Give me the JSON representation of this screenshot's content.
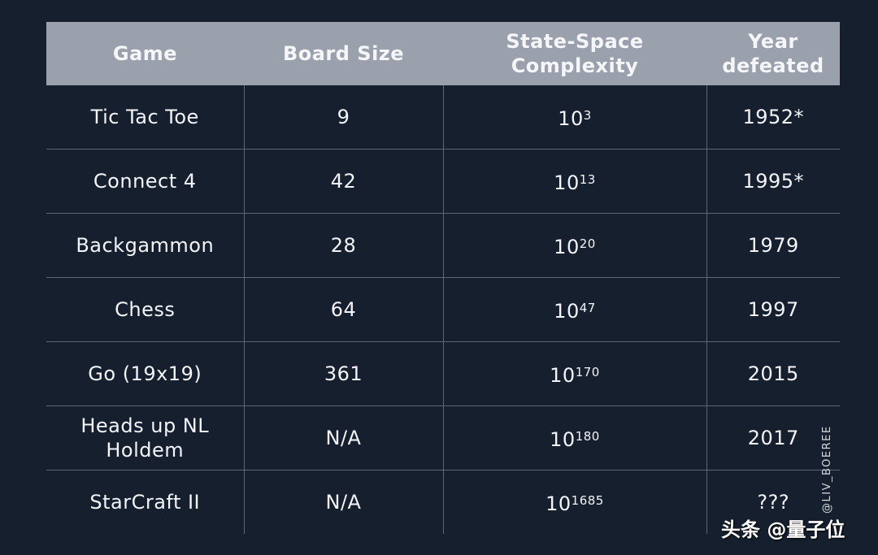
{
  "table": {
    "headers": [
      "Game",
      "Board Size",
      "State-Space Complexity",
      "Year defeated"
    ],
    "rows": [
      {
        "game": "Tic Tac Toe",
        "board": "9",
        "base": "10",
        "exp": "3",
        "year": "1952*"
      },
      {
        "game": "Connect 4",
        "board": "42",
        "base": "10",
        "exp": "13",
        "year": "1995*"
      },
      {
        "game": "Backgammon",
        "board": "28",
        "base": "10",
        "exp": "20",
        "year": "1979"
      },
      {
        "game": "Chess",
        "board": "64",
        "base": "10",
        "exp": "47",
        "year": "1997"
      },
      {
        "game": "Go (19x19)",
        "board": "361",
        "base": "10",
        "exp": "170",
        "year": "2015"
      },
      {
        "game": "Heads up NL Holdem",
        "board": "N/A",
        "base": "10",
        "exp": "180",
        "year": "2017"
      },
      {
        "game": "StarCraft II",
        "board": "N/A",
        "base": "10",
        "exp": "1685",
        "year": "???"
      }
    ]
  },
  "watermarks": {
    "credit": "@LIV_BOEREE",
    "source": "头条 @量子位"
  },
  "colors": {
    "background": "#151f2e",
    "header": "#9aa1ad",
    "grid": "#5d6675"
  }
}
